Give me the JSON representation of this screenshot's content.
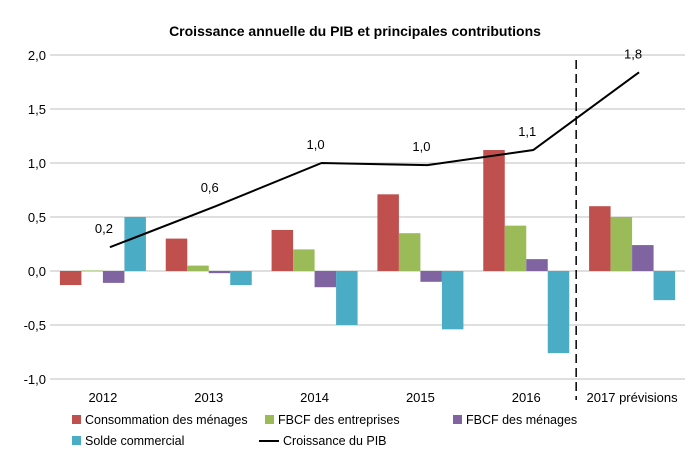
{
  "chart_data": {
    "type": "bar",
    "title": "Croissance annuelle du PIB et principales contributions",
    "xlabel": "",
    "ylabel": "",
    "ylim": [
      -1.0,
      2.0
    ],
    "yticks": [
      "2,0",
      "1,5",
      "1,0",
      "0,5",
      "0,0",
      "-0,5",
      "-1,0"
    ],
    "ytick_values": [
      2.0,
      1.5,
      1.0,
      0.5,
      0.0,
      -0.5,
      -1.0
    ],
    "grid": true,
    "legend_position": "bottom",
    "categories": [
      "2012",
      "2013",
      "2014",
      "2015",
      "2016",
      "2017 prévisions"
    ],
    "series": [
      {
        "name": "Consommation des ménages",
        "kind": "bar",
        "color": "#C0504D",
        "values": [
          -0.13,
          0.3,
          0.38,
          0.71,
          1.12,
          0.6
        ]
      },
      {
        "name": "FBCF des entreprises",
        "kind": "bar",
        "color": "#9BBB59",
        "values": [
          0.005,
          0.05,
          0.2,
          0.35,
          0.42,
          0.5
        ]
      },
      {
        "name": "FBCF des ménages",
        "kind": "bar",
        "color": "#8064A2",
        "values": [
          -0.11,
          -0.02,
          -0.15,
          -0.1,
          0.11,
          0.24
        ]
      },
      {
        "name": "Solde commercial",
        "kind": "bar",
        "color": "#4BACC6",
        "values": [
          0.5,
          -0.13,
          -0.5,
          -0.54,
          -0.76,
          -0.27
        ]
      },
      {
        "name": "Croissance du PIB",
        "kind": "line",
        "color": "#000000",
        "values": [
          0.22,
          0.6,
          1.0,
          0.98,
          1.12,
          1.84
        ],
        "labels": [
          "0,2",
          "0,6",
          "1,0",
          "1,0",
          "1,1",
          "1,8"
        ]
      }
    ],
    "annotations": [
      "forecast separator (dashed line) between 2016 and 2017 prévisions"
    ]
  }
}
